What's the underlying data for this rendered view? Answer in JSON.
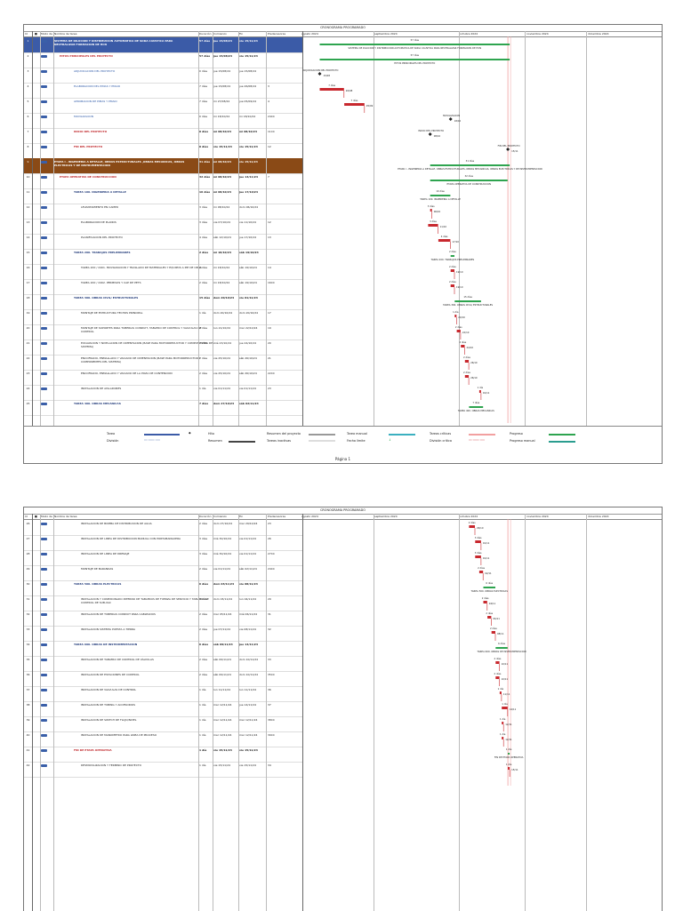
{
  "doc_title": "CRONOGRAMA PROGRAMADO",
  "headers": {
    "id": "Id",
    "modo": "Modo de",
    "nombre": "Nombre de tarea",
    "duracion": "Duración",
    "comienzo": "Comienzo",
    "fin": "Fin",
    "predecesoras": "Predecesoras"
  },
  "timeline": [
    "agosto 2024",
    "septiembre 2024",
    "octubre 2024",
    "noviembre 2024",
    "diciembre 2024"
  ],
  "page1_rows": [
    {
      "id": "1",
      "name": "SISTEMA DE DILUCION Y DISTRIBUCION AUTOMATICA DE SODA CAUSTICA PARA NEUTRALIZAR FORMACION DE HCN",
      "dur": "57 días",
      "start": "jue 15/08/24",
      "end": "vie 15/11/24",
      "pred": "",
      "style": "hl-blue",
      "level": "l0"
    },
    {
      "id": "2",
      "name": "HITOS PRINCIPALES DEL PROYECTO",
      "dur": "57 días",
      "start": "jue 15/08/24",
      "end": "vie 15/11/24",
      "pred": "",
      "style": "red",
      "level": "l1"
    },
    {
      "id": "3",
      "name": "ADJUDICACION DEL PROYECTO",
      "dur": "0 días",
      "start": "jue 15/08/24",
      "end": "jue 15/08/24",
      "pred": "",
      "style": "blue",
      "level": "l2"
    },
    {
      "id": "4",
      "name": "ELABORACION DEL PIMAS Y PMAIO",
      "dur": "7 días",
      "start": "jue 15/08/24",
      "end": "jue 26/08/24",
      "pred": "3",
      "style": "blue",
      "level": "l2"
    },
    {
      "id": "5",
      "name": "APROBACION DE PIMAS Y PMAIO",
      "dur": "7 días",
      "start": "mi 27/08/24",
      "end": "jue 05/09/24",
      "pred": "4",
      "style": "blue",
      "level": "l2"
    },
    {
      "id": "6",
      "name": "MOVILIZACION",
      "dur": "0 días",
      "start": "mi 18/10/24",
      "end": "mi 18/10/24",
      "pred": "24CC",
      "style": "blue",
      "level": "l2"
    },
    {
      "id": "7",
      "name": "INICIO DEL PROYECTO",
      "dur": "0 días",
      "start": "mi 08/10/24",
      "end": "mi 08/10/24",
      "pred": "11CC",
      "style": "red",
      "level": "l2"
    },
    {
      "id": "8",
      "name": "FIN DEL PROYECTO",
      "dur": "0 días",
      "start": "vie 15/11/24",
      "end": "vie 15/11/24",
      "pred": "12",
      "style": "red",
      "level": "l2"
    },
    {
      "id": "9",
      "name": "ETAPA I - INGENIERIA A DETALLE, OBRAS ESTRUCTURALES ,OBRAS MECANICAS, OBRAS ELECTRICAS Y DE INSTRUMENTACION",
      "dur": "31 días",
      "start": "mi 08/10/24",
      "end": "vie 15/11/24",
      "pred": "",
      "style": "hl-brown",
      "level": "l0"
    },
    {
      "id": "10",
      "name": "ETAPA OPERATIVA DE CONSTRUCCION",
      "dur": "32 días",
      "start": "mi 08/10/24",
      "end": "jue 14/11/24",
      "pred": "7",
      "style": "red",
      "level": "l1"
    },
    {
      "id": "11",
      "name": "TAREA 100. INGENIERIA A DETALLE",
      "dur": "10 días",
      "start": "mi 08/10/24",
      "end": "jue 17/10/24",
      "pred": "",
      "style": "navy",
      "level": "l2"
    },
    {
      "id": "12",
      "name": "LEVANTAMIENTO EN CAMPO",
      "dur": "3 días",
      "start": "mi 08/10/24",
      "end": "dom 06/10/24",
      "pred": "",
      "style": "",
      "level": "l3"
    },
    {
      "id": "13",
      "name": "ELABORACION DE PLANOS",
      "dur": "3 días",
      "start": "vie 07/10/24",
      "end": "vie 11/10/24",
      "pred": "12",
      "style": "",
      "level": "l3"
    },
    {
      "id": "14",
      "name": "PLANIFICACION DEL PROYECTO",
      "dur": "4 días",
      "start": "sáb 12/10/24",
      "end": "jue 17/10/24",
      "pred": "13",
      "style": "",
      "level": "l3"
    },
    {
      "id": "15",
      "name": "TAREA 200. TRABAJOS PRELIMINARES",
      "dur": "2 días",
      "start": "mi 18/10/24",
      "end": "sáb 19/10/24",
      "pred": "",
      "style": "navy",
      "level": "l2"
    },
    {
      "id": "16",
      "name": "TAREA 200 / 2401. MOVILIZACION Y TRASLADO DE MATERIALES Y EQUIPOS A PIE DE OBRA",
      "dur": "2 días",
      "start": "mi 18/10/24",
      "end": "sáb 19/10/24",
      "pred": "14",
      "style": "",
      "level": "l3"
    },
    {
      "id": "17",
      "name": "TAREA 200 / 2402. PERMISOS Y CAP DE PETS",
      "dur": "2 días",
      "start": "mi 18/10/24",
      "end": "sáb 19/10/24",
      "pred": "16CC",
      "style": "",
      "level": "l3"
    },
    {
      "id": "18",
      "name": "TAREA 300. OBRAS CIVIL/ ESTRUCTURALES",
      "dur": "15 días",
      "start": "dom 20/10/24",
      "end": "vie 01/11/24",
      "pred": "",
      "style": "navy",
      "level": "l2"
    },
    {
      "id": "19",
      "name": "MONTAJE DE ESTRUCTURA TECHOS PRINCIPAL",
      "dur": "1 día",
      "start": "dom 20/10/24",
      "end": "dom 20/10/24",
      "pred": "17",
      "style": "",
      "level": "l3"
    },
    {
      "id": "20",
      "name": "MONTAJE DE SOPORTES PARA TUBERIAS CONDUIT, TABLERO DE CONTROL Y VALVULAS DE CONTROL",
      "dur": "2 días",
      "start": "lun 21/10/24",
      "end": "mar 22/10/24",
      "pred": "19",
      "style": "",
      "level": "l3"
    },
    {
      "id": "21",
      "name": "EXCAVACION Y NIVELACION DE CIMENTACION (BASE PARA MOTORREDUCTOR Y COMPONENTES DEL SISTEMA)",
      "dur": "2 días",
      "start": "mié 23/10/24",
      "end": "jue 24/10/24",
      "pred": "20",
      "style": "",
      "level": "l3"
    },
    {
      "id": "22",
      "name": "ENCOFRADO, ENMALLADO Y VACIADO DE CIMENTACION (BASE PARA MOTORREDUCTOR Y COMPONENTES DEL SISTEMA)",
      "dur": "2 días",
      "start": "vie 25/10/24",
      "end": "sáb 26/10/24",
      "pred": "21",
      "style": "",
      "level": "l3"
    },
    {
      "id": "23",
      "name": "ENCOFRADO, ENMALLADO Y VACIADO DE LA POZA DE CONTENCION",
      "dur": "2 días",
      "start": "vie 25/10/24",
      "end": "sáb 26/10/24",
      "pred": "22CC",
      "style": "",
      "level": "l3"
    },
    {
      "id": "24",
      "name": "INSTALACION DE AISLADORES",
      "dur": "1 día",
      "start": "vie 01/11/24",
      "end": "vie 01/11/24",
      "pred": "23",
      "style": "",
      "level": "l3"
    },
    {
      "id": "25",
      "name": "TAREA 400. OBRAS MECANICAS",
      "dur": "7 días",
      "start": "dom 27/10/24",
      "end": "sáb 02/11/24",
      "pred": "",
      "style": "navy",
      "level": "l2"
    }
  ],
  "page2_rows": [
    {
      "id": "26",
      "name": "INSTALACION DE BOMBA DE DISTRIBUCION DE AGUA",
      "dur": "2 días",
      "start": "dom 27/10/24",
      "end": "mar 29/10/24",
      "pred": "23",
      "style": "",
      "level": "l3"
    },
    {
      "id": "27",
      "name": "INSTALACION DE LINEA DE DISTRIBUCION MANUAL CON PORTAMANGUERA",
      "dur": "3 días",
      "start": "mié 30/10/24",
      "end": "vie 01/11/24",
      "pred": "26",
      "style": "",
      "level": "l3"
    },
    {
      "id": "28",
      "name": "INSTALACION DE LINEA DE DRENAJE",
      "dur": "3 días",
      "start": "mié 30/10/24",
      "end": "vie 01/11/24",
      "pred": "27CC",
      "style": "",
      "level": "l3"
    },
    {
      "id": "29",
      "name": "MONTAJE DE BARANDAS",
      "dur": "2 días",
      "start": "vie 01/11/24",
      "end": "sáb 02/11/24",
      "pred": "24CC",
      "style": "",
      "level": "l3"
    },
    {
      "id": "30",
      "name": "TAREA 500. OBRAS ELECTRICAS",
      "dur": "6 días",
      "start": "dom 03/11/24",
      "end": "vie 08/11/24",
      "pred": "",
      "style": "navy",
      "level": "l2"
    },
    {
      "id": "31",
      "name": "INSTALACION Y CONEXIONADO INTERNO DE TABLEROS DE FUERZA DE SERVICIO Y TABLERO DE CONTROL DE SUB-VAC",
      "dur": "2 días",
      "start": "dom 03/11/24",
      "end": "lun 04/11/24",
      "pred": "29",
      "style": "",
      "level": "l3"
    },
    {
      "id": "32",
      "name": "INSTALACION DE TUBERIAS CONDUIT PARA CABLEADOS",
      "dur": "2 días",
      "start": "mar 05/11/24",
      "end": "mié 06/11/24",
      "pred": "31",
      "style": "",
      "level": "l3"
    },
    {
      "id": "33",
      "name": "INSTALACION SISTEMA PUESTA A TIERRA",
      "dur": "2 días",
      "start": "jue 07/11/24",
      "end": "vie 08/11/24",
      "pred": "32",
      "style": "",
      "level": "l3"
    },
    {
      "id": "34",
      "name": "TAREA 600. OBRAS DE INSTRUMENTACION",
      "dur": "6 días",
      "start": "sáb 09/11/24",
      "end": "jue 14/11/24",
      "pred": "",
      "style": "navy",
      "level": "l2"
    },
    {
      "id": "35",
      "name": "INSTALACION DE TABLERO DE CONTROL DE VÁLVULAS",
      "dur": "2 días",
      "start": "sáb 09/11/24",
      "end": "dom 10/11/24",
      "pred": "33",
      "style": "",
      "level": "l3"
    },
    {
      "id": "36",
      "name": "INSTALACION DE ESTACIONES DE CONTROL",
      "dur": "2 días",
      "start": "sáb 09/11/24",
      "end": "dom 10/11/24",
      "pred": "35CC",
      "style": "",
      "level": "l3"
    },
    {
      "id": "37",
      "name": "INSTALACION DE VALVULAS DE CONTROL",
      "dur": "1 día",
      "start": "lun 11/11/24",
      "end": "lun 11/11/24",
      "pred": "36",
      "style": "",
      "level": "l3"
    },
    {
      "id": "38",
      "name": "INSTALACION DE TUBING Y ACCESORIOS",
      "dur": "1 día",
      "start": "mar 12/11/24",
      "end": "jue 14/11/24",
      "pred": "37",
      "style": "",
      "level": "l3"
    },
    {
      "id": "39",
      "name": "INSTALACION DE SWITCH DE FLUJO/NIVEL",
      "dur": "1 día",
      "start": "mar 12/11/24",
      "end": "mar 12/11/24",
      "pred": "38CC",
      "style": "",
      "level": "l3"
    },
    {
      "id": "40",
      "name": "INSTALACION DE MANOMETRO PARA LINEA DE PROCESO",
      "dur": "1 día",
      "start": "mar 12/11/24",
      "end": "mar 12/11/24",
      "pred": "39CC",
      "style": "",
      "level": "l3"
    },
    {
      "id": "41",
      "name": "FIN DE ETAPA OPERATIVA",
      "dur": "1 día",
      "start": "vie 15/11/24",
      "end": "vie 15/11/24",
      "pred": "",
      "style": "red",
      "level": "l2"
    },
    {
      "id": "42",
      "name": "DESMOVILIZACION Y TERMINO DE PROYECTO",
      "dur": "1 día",
      "start": "vie 15/11/24",
      "end": "vie 15/11/24",
      "pred": "34",
      "style": "",
      "level": "l3"
    }
  ],
  "gantt_labels_p1": [
    {
      "row": 0,
      "text": "57 días"
    },
    {
      "row": 0,
      "text": "SISTEMA DE DILUCION Y DISTRIBUCION AUTOMATICA DE SODA CAUSTICA PARA NEUTRALIZAR FORMACION DE HCN"
    },
    {
      "row": 1,
      "text": "57 días"
    },
    {
      "row": 1,
      "text": "HITOS PRINCIPALES DEL PROYECTO"
    },
    {
      "row": 2,
      "text": "ADJUDICACION DEL PROYECTO"
    },
    {
      "row": 2,
      "text": "15/08"
    },
    {
      "row": 3,
      "text": "7 días"
    },
    {
      "row": 3,
      "text": "26/08"
    },
    {
      "row": 4,
      "text": "7 días"
    },
    {
      "row": 4,
      "text": "05/09"
    },
    {
      "row": 5,
      "text": "MOVILIZACION"
    },
    {
      "row": 5,
      "text": "18/10"
    },
    {
      "row": 6,
      "text": "INICIO DEL PROYECTO"
    },
    {
      "row": 6,
      "text": "08/10"
    },
    {
      "row": 7,
      "text": "FIN DEL PROYECTO"
    },
    {
      "row": 7,
      "text": "15/11"
    },
    {
      "row": 8,
      "text": "31 días"
    },
    {
      "row": 8,
      "text": "ETAPA I - INGENIERIA A DETALLE, OBRAS ESTRUCTURALES ,OBRAS MECANICAS, OBRAS ELECTRICAS Y DE INSTRUMENTACION"
    },
    {
      "row": 9,
      "text": "32 días"
    },
    {
      "row": 9,
      "text": "ETAPA OPERATIVA DE CONSTRUCCION"
    },
    {
      "row": 10,
      "text": "10 días"
    },
    {
      "row": 10,
      "text": "TAREA 100. INGENIERIA A DETALLE"
    },
    {
      "row": 11,
      "text": "3 días"
    },
    {
      "row": 11,
      "text": "06/10"
    },
    {
      "row": 12,
      "text": "3 días"
    },
    {
      "row": 12,
      "text": "11/10"
    },
    {
      "row": 13,
      "text": "4 días"
    },
    {
      "row": 13,
      "text": "17/10"
    },
    {
      "row": 14,
      "text": "2 días"
    },
    {
      "row": 14,
      "text": "TAREA 200. TRABAJOS PRELIMINARES"
    },
    {
      "row": 15,
      "text": "2 días"
    },
    {
      "row": 15,
      "text": "19/10"
    },
    {
      "row": 16,
      "text": "2 días"
    },
    {
      "row": 16,
      "text": "19/10"
    },
    {
      "row": 17,
      "text": "15 días"
    },
    {
      "row": 17,
      "text": "TAREA 300. OBRAS CIVIL/ ESTRUCTURALES"
    },
    {
      "row": 18,
      "text": "1 día"
    },
    {
      "row": 18,
      "text": "20/10"
    },
    {
      "row": 19,
      "text": "2 días"
    },
    {
      "row": 19,
      "text": "22/10"
    },
    {
      "row": 20,
      "text": "2 días"
    },
    {
      "row": 20,
      "text": "24/10"
    },
    {
      "row": 21,
      "text": "2 días"
    },
    {
      "row": 21,
      "text": "26/10"
    },
    {
      "row": 22,
      "text": "2 días"
    },
    {
      "row": 22,
      "text": "26/10"
    },
    {
      "row": 23,
      "text": "1 día"
    },
    {
      "row": 23,
      "text": "01/11"
    },
    {
      "row": 24,
      "text": "7 días"
    },
    {
      "row": 24,
      "text": "TAREA 400. OBRAS MECANICAS"
    }
  ],
  "gantt_labels_p2": [
    {
      "row": 0,
      "text": "2 días"
    },
    {
      "row": 0,
      "text": "29/10"
    },
    {
      "row": 1,
      "text": "3 días"
    },
    {
      "row": 1,
      "text": "01/11"
    },
    {
      "row": 2,
      "text": "3 días"
    },
    {
      "row": 2,
      "text": "01/11"
    },
    {
      "row": 3,
      "text": "2 días"
    },
    {
      "row": 3,
      "text": "02/11"
    },
    {
      "row": 4,
      "text": "6 días"
    },
    {
      "row": 4,
      "text": "TAREA 500. OBRAS ELECTRICAS"
    },
    {
      "row": 5,
      "text": "2 días"
    },
    {
      "row": 5,
      "text": "04/11"
    },
    {
      "row": 6,
      "text": "2 días"
    },
    {
      "row": 6,
      "text": "06/11"
    },
    {
      "row": 7,
      "text": "2 días"
    },
    {
      "row": 7,
      "text": "08/11"
    },
    {
      "row": 8,
      "text": "6 días"
    },
    {
      "row": 8,
      "text": "TAREA 600. OBRAS DE INSTRUMENTACION"
    },
    {
      "row": 9,
      "text": "2 días"
    },
    {
      "row": 9,
      "text": "10/11"
    },
    {
      "row": 10,
      "text": "2 días"
    },
    {
      "row": 10,
      "text": "10/11"
    },
    {
      "row": 11,
      "text": "1 día"
    },
    {
      "row": 11,
      "text": "11/11"
    },
    {
      "row": 12,
      "text": "1 día"
    },
    {
      "row": 12,
      "text": "14/11"
    },
    {
      "row": 13,
      "text": "1 día"
    },
    {
      "row": 13,
      "text": "12/11"
    },
    {
      "row": 14,
      "text": "1 día"
    },
    {
      "row": 14,
      "text": "12/11"
    },
    {
      "row": 15,
      "text": "1 día"
    },
    {
      "row": 15,
      "text": "FIN DE ETAPA OPERATIVA"
    },
    {
      "row": 16,
      "text": "1 día"
    },
    {
      "row": 16,
      "text": "15/11"
    }
  ],
  "legend": {
    "tarea": "Tarea",
    "division": "División",
    "hito": "Hito",
    "resumen": "Resumen",
    "resumen_proyecto": "Resumen del proyecto",
    "tareas_inactivas": "Tareas inactivas",
    "tarea_manual": "Tarea manual",
    "fecha_limite": "Fecha límite",
    "tareas_criticas": "Tareas críticas",
    "division_critica": "División crítica",
    "progreso": "Progreso",
    "progreso_manual": "Progreso manual"
  },
  "footer": "Página 1",
  "colors": {
    "critical": "#c8282e",
    "summary": "#2ea44f",
    "task": "#3b5ba7",
    "deadline": "#f2a0a0"
  }
}
